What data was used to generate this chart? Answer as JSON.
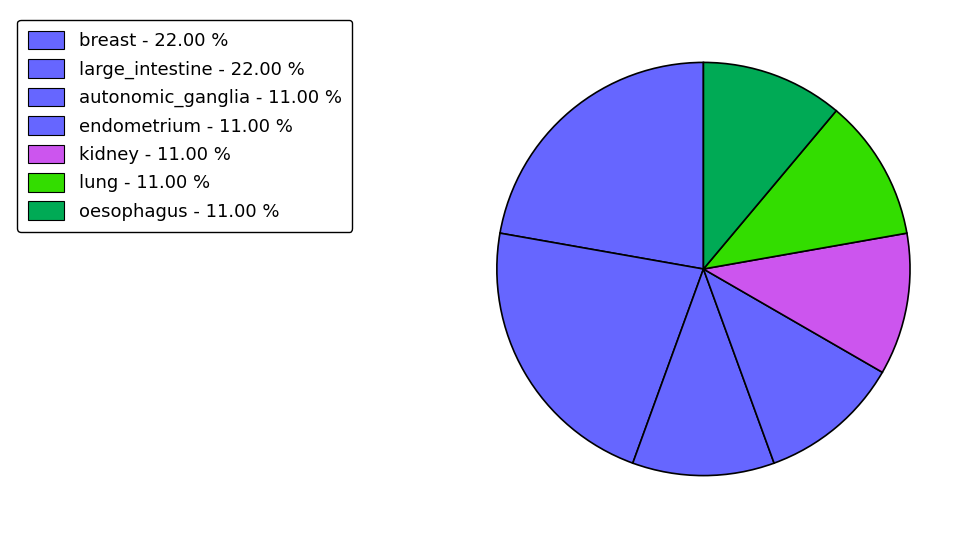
{
  "labels": [
    "breast",
    "large_intestine",
    "autonomic_ganglia",
    "endometrium",
    "kidney",
    "lung",
    "oesophagus"
  ],
  "values": [
    22,
    22,
    11,
    11,
    11,
    11,
    11
  ],
  "colors": [
    "#6666ff",
    "#6666ff",
    "#6666ff",
    "#6666ff",
    "#cc55ee",
    "#33dd00",
    "#00aa55"
  ],
  "legend_labels": [
    "breast - 22.00 %",
    "large_intestine - 22.00 %",
    "autonomic_ganglia - 11.00 %",
    "endometrium - 11.00 %",
    "kidney - 11.00 %",
    "lung - 11.00 %",
    "oesophagus - 11.00 %"
  ],
  "startangle": 90,
  "background_color": "#ffffff",
  "legend_fontsize": 13,
  "figsize": [
    9.77,
    5.38
  ]
}
